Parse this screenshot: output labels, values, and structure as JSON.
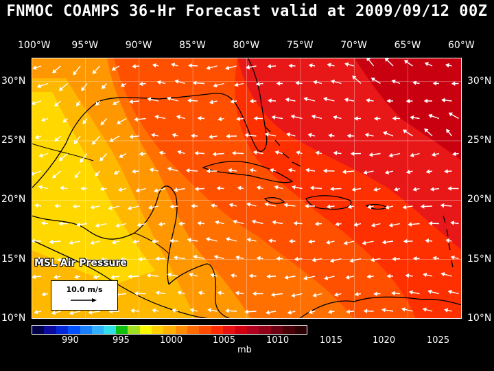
{
  "title": "FNMOC COAMPS 36-Hr Forecast valid at 2009/09/12 00Z",
  "map": {
    "lon_labels": [
      "100°W",
      "95°W",
      "90°W",
      "85°W",
      "80°W",
      "75°W",
      "70°W",
      "65°W",
      "60°W"
    ],
    "lat_labels": [
      "30°N",
      "25°N",
      "20°N",
      "15°N",
      "10°N"
    ],
    "lon_range": [
      -100,
      -60
    ],
    "lat_range": [
      10,
      32
    ]
  },
  "overlay": {
    "field_label": "MSL Air Pressure",
    "vector_reference": "10.0 m/s"
  },
  "colorbar": {
    "unit": "mb",
    "tick_labels": [
      "990",
      "995",
      "1000",
      "1005",
      "1010",
      "1015",
      "1020",
      "1025"
    ],
    "colors": [
      "#00004a",
      "#0a0aa0",
      "#0028d8",
      "#0050ff",
      "#1a80ff",
      "#30b0ff",
      "#30e0e8",
      "#10c010",
      "#a0e020",
      "#f8f800",
      "#ffd000",
      "#ffb000",
      "#ff8c00",
      "#ff6a00",
      "#ff4a00",
      "#ff2a00",
      "#e81010",
      "#d00010",
      "#b00020",
      "#900018",
      "#6a0010",
      "#480008",
      "#2a0004"
    ],
    "pressure_fill_colors": {
      "1008": "#ffd800",
      "1010": "#ffb800",
      "1012": "#ff9800",
      "1014": "#ff7000",
      "1016": "#ff5000",
      "1018": "#ff3000",
      "1020": "#e81818",
      "1022": "#c80010"
    }
  }
}
